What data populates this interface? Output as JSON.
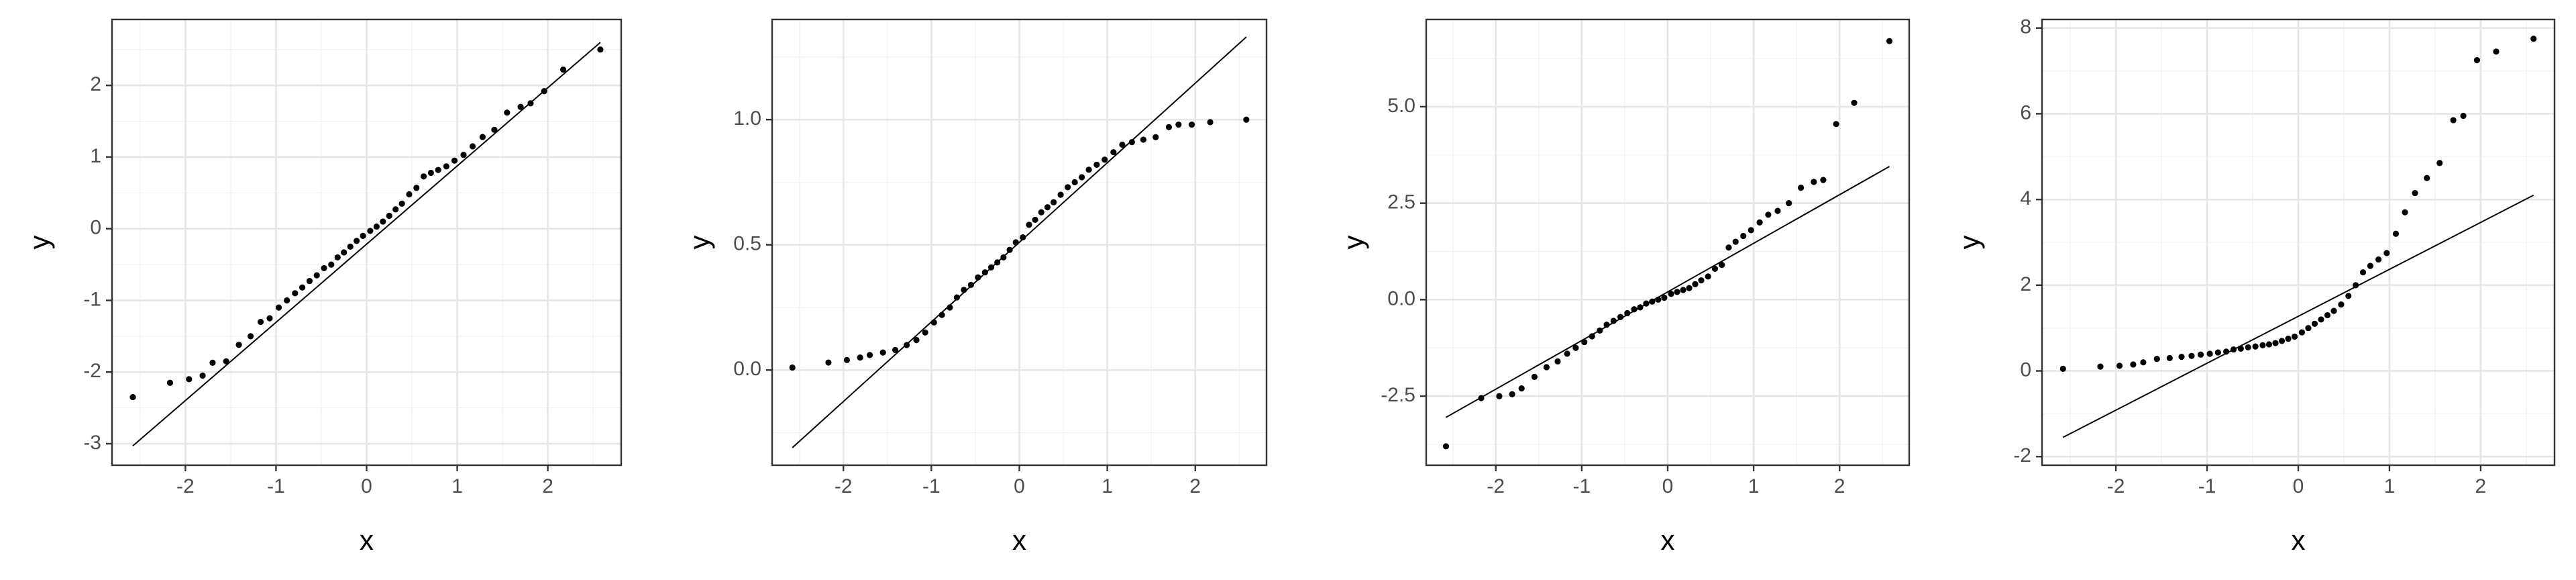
{
  "chart_data": [
    {
      "type": "qq",
      "xlabel": "x",
      "ylabel": "y",
      "grid": true,
      "xlim": [
        -2.81,
        2.81
      ],
      "ylim": [
        -3.3,
        2.92
      ],
      "xticks": [
        -2,
        -1,
        0,
        1,
        2
      ],
      "yticks": [
        -3,
        -2,
        -1,
        0,
        1,
        2
      ],
      "xminor": [
        -2.5,
        -1.5,
        -0.5,
        0.5,
        1.5,
        2.5
      ],
      "yminor": [
        -2.5,
        -1.5,
        -0.5,
        0.5,
        1.5,
        2.5
      ],
      "points": {
        "x": [
          -2.58,
          -2.17,
          -1.96,
          -1.81,
          -1.7,
          -1.55,
          -1.41,
          -1.28,
          -1.17,
          -1.07,
          -0.97,
          -0.88,
          -0.79,
          -0.71,
          -0.63,
          -0.55,
          -0.47,
          -0.39,
          -0.32,
          -0.25,
          -0.18,
          -0.11,
          -0.04,
          0.04,
          0.11,
          0.18,
          0.25,
          0.32,
          0.39,
          0.47,
          0.55,
          0.63,
          0.71,
          0.79,
          0.88,
          0.97,
          1.07,
          1.17,
          1.28,
          1.41,
          1.55,
          1.7,
          1.81,
          1.96,
          2.17,
          2.58
        ],
        "y": [
          -2.35,
          -2.15,
          -2.1,
          -2.05,
          -1.87,
          -1.85,
          -1.62,
          -1.5,
          -1.3,
          -1.25,
          -1.1,
          -1.0,
          -0.9,
          -0.82,
          -0.73,
          -0.65,
          -0.55,
          -0.5,
          -0.4,
          -0.33,
          -0.25,
          -0.17,
          -0.1,
          -0.03,
          0.03,
          0.1,
          0.18,
          0.27,
          0.35,
          0.48,
          0.57,
          0.73,
          0.78,
          0.82,
          0.87,
          0.95,
          1.03,
          1.15,
          1.28,
          1.38,
          1.62,
          1.7,
          1.75,
          1.92,
          2.22,
          2.5
        ]
      },
      "line": {
        "x": [
          -2.58,
          2.58
        ],
        "y": [
          -3.03,
          2.6
        ]
      }
    },
    {
      "type": "qq",
      "xlabel": "x",
      "ylabel": "y",
      "grid": true,
      "xlim": [
        -2.81,
        2.81
      ],
      "ylim": [
        -0.38,
        1.4
      ],
      "xticks": [
        -2,
        -1,
        0,
        1,
        2
      ],
      "yticks": [
        {
          "value": 0,
          "label": "0.0"
        },
        0.5,
        {
          "value": 1,
          "label": "1.0"
        }
      ],
      "xminor": [
        -2.5,
        -1.5,
        -0.5,
        0.5,
        1.5,
        2.5
      ],
      "yminor": [
        -0.25,
        0.25,
        0.75,
        1.25
      ],
      "points": {
        "x": [
          -2.58,
          -2.17,
          -1.96,
          -1.81,
          -1.7,
          -1.55,
          -1.41,
          -1.28,
          -1.17,
          -1.07,
          -0.97,
          -0.88,
          -0.79,
          -0.71,
          -0.63,
          -0.55,
          -0.47,
          -0.39,
          -0.32,
          -0.25,
          -0.18,
          -0.11,
          -0.04,
          0.04,
          0.11,
          0.18,
          0.25,
          0.32,
          0.39,
          0.47,
          0.55,
          0.63,
          0.71,
          0.79,
          0.88,
          0.97,
          1.07,
          1.17,
          1.28,
          1.41,
          1.55,
          1.7,
          1.81,
          1.96,
          2.17,
          2.58
        ],
        "y": [
          0.01,
          0.03,
          0.04,
          0.05,
          0.06,
          0.07,
          0.08,
          0.1,
          0.12,
          0.15,
          0.19,
          0.22,
          0.25,
          0.29,
          0.32,
          0.34,
          0.37,
          0.39,
          0.41,
          0.43,
          0.45,
          0.48,
          0.51,
          0.53,
          0.58,
          0.6,
          0.63,
          0.65,
          0.67,
          0.7,
          0.73,
          0.75,
          0.77,
          0.8,
          0.82,
          0.84,
          0.87,
          0.9,
          0.91,
          0.92,
          0.93,
          0.97,
          0.98,
          0.98,
          0.99,
          1.0
        ]
      },
      "line": {
        "x": [
          -2.58,
          2.58
        ],
        "y": [
          -0.31,
          1.33
        ]
      }
    },
    {
      "type": "qq",
      "xlabel": "x",
      "ylabel": "y",
      "grid": true,
      "xlim": [
        -2.81,
        2.81
      ],
      "ylim": [
        -4.29,
        7.26
      ],
      "xticks": [
        -2,
        -1,
        0,
        1,
        2
      ],
      "yticks": [
        -2.5,
        {
          "value": 0,
          "label": "0.0"
        },
        2.5,
        {
          "value": 5,
          "label": "5.0"
        }
      ],
      "xminor": [
        -2.5,
        -1.5,
        -0.5,
        0.5,
        1.5,
        2.5
      ],
      "yminor": [
        -3.75,
        -1.25,
        1.25,
        3.75,
        6.25
      ],
      "points": {
        "x": [
          -2.58,
          -2.17,
          -1.96,
          -1.81,
          -1.7,
          -1.55,
          -1.41,
          -1.28,
          -1.17,
          -1.07,
          -0.97,
          -0.88,
          -0.79,
          -0.71,
          -0.63,
          -0.55,
          -0.47,
          -0.39,
          -0.32,
          -0.25,
          -0.18,
          -0.11,
          -0.04,
          0.04,
          0.11,
          0.18,
          0.25,
          0.32,
          0.39,
          0.47,
          0.55,
          0.63,
          0.71,
          0.79,
          0.88,
          0.97,
          1.07,
          1.17,
          1.28,
          1.41,
          1.55,
          1.7,
          1.81,
          1.96,
          2.17,
          2.58
        ],
        "y": [
          -3.8,
          -2.55,
          -2.5,
          -2.45,
          -2.3,
          -2.0,
          -1.75,
          -1.6,
          -1.4,
          -1.25,
          -1.1,
          -0.95,
          -0.8,
          -0.65,
          -0.55,
          -0.45,
          -0.35,
          -0.25,
          -0.2,
          -0.1,
          -0.05,
          0.0,
          0.05,
          0.15,
          0.2,
          0.25,
          0.3,
          0.4,
          0.5,
          0.6,
          0.8,
          0.9,
          1.35,
          1.5,
          1.65,
          1.8,
          2.0,
          2.2,
          2.3,
          2.5,
          2.9,
          3.05,
          3.1,
          4.55,
          5.1,
          6.7
        ]
      },
      "line": {
        "x": [
          -2.58,
          2.58
        ],
        "y": [
          -3.05,
          3.45
        ]
      }
    },
    {
      "type": "qq",
      "xlabel": "x",
      "ylabel": "y",
      "grid": true,
      "xlim": [
        -2.81,
        2.81
      ],
      "ylim": [
        -2.2,
        8.2
      ],
      "xticks": [
        -2,
        -1,
        0,
        1,
        2
      ],
      "yticks": [
        -2,
        0,
        2,
        4,
        6,
        8
      ],
      "xminor": [
        -2.5,
        -1.5,
        -0.5,
        0.5,
        1.5,
        2.5
      ],
      "yminor": [
        -1,
        1,
        3,
        5,
        7
      ],
      "points": {
        "x": [
          -2.58,
          -2.17,
          -1.96,
          -1.81,
          -1.7,
          -1.55,
          -1.41,
          -1.28,
          -1.17,
          -1.07,
          -0.97,
          -0.88,
          -0.79,
          -0.71,
          -0.63,
          -0.55,
          -0.47,
          -0.39,
          -0.32,
          -0.25,
          -0.18,
          -0.11,
          -0.04,
          0.04,
          0.11,
          0.18,
          0.25,
          0.32,
          0.39,
          0.47,
          0.55,
          0.63,
          0.71,
          0.79,
          0.88,
          0.97,
          1.07,
          1.17,
          1.28,
          1.41,
          1.55,
          1.7,
          1.81,
          1.96,
          2.17,
          2.58
        ],
        "y": [
          0.05,
          0.1,
          0.12,
          0.15,
          0.2,
          0.28,
          0.3,
          0.33,
          0.35,
          0.38,
          0.4,
          0.43,
          0.45,
          0.5,
          0.52,
          0.55,
          0.57,
          0.6,
          0.62,
          0.65,
          0.7,
          0.75,
          0.8,
          0.9,
          1.0,
          1.1,
          1.2,
          1.3,
          1.4,
          1.55,
          1.75,
          2.0,
          2.3,
          2.45,
          2.6,
          2.75,
          3.2,
          3.7,
          4.15,
          4.5,
          4.85,
          5.85,
          5.95,
          7.25,
          7.45,
          7.75
        ]
      },
      "line": {
        "x": [
          -2.58,
          2.58
        ],
        "y": [
          -1.55,
          4.1
        ]
      }
    }
  ]
}
